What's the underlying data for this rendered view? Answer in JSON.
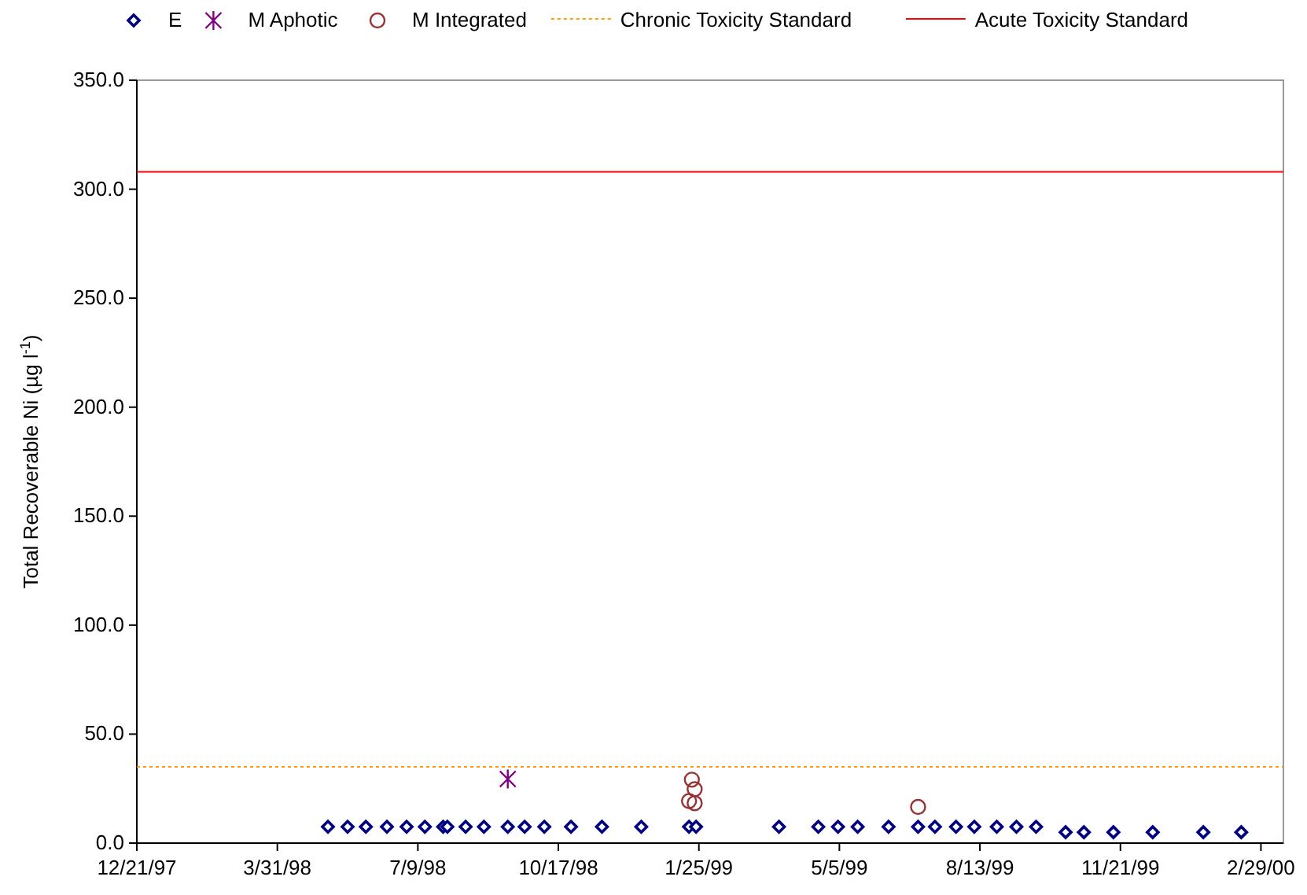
{
  "chart_data": {
    "type": "scatter",
    "ylabel": "Total Recoverable Ni (µg l$^{-1}$)",
    "xlim": [
      "1997-12-21",
      "2000-03-16"
    ],
    "xticks": [
      {
        "value": "1997-12-21",
        "label": "12/21/97"
      },
      {
        "value": "1998-03-31",
        "label": "3/31/98"
      },
      {
        "value": "1998-07-09",
        "label": "7/9/98"
      },
      {
        "value": "1998-10-17",
        "label": "10/17/98"
      },
      {
        "value": "1999-01-25",
        "label": "1/25/99"
      },
      {
        "value": "1999-05-05",
        "label": "5/5/99"
      },
      {
        "value": "1999-08-13",
        "label": "8/13/99"
      },
      {
        "value": "1999-11-21",
        "label": "11/21/99"
      },
      {
        "value": "2000-02-29",
        "label": "2/29/00"
      }
    ],
    "ylim": [
      0,
      350
    ],
    "yticks": [
      {
        "value": 0,
        "label": "0.0"
      },
      {
        "value": 50,
        "label": "50.0"
      },
      {
        "value": 100,
        "label": "100.0"
      },
      {
        "value": 150,
        "label": "150.0"
      },
      {
        "value": 200,
        "label": "200.0"
      },
      {
        "value": 250,
        "label": "250.0"
      },
      {
        "value": 300,
        "label": "300.0"
      },
      {
        "value": 350,
        "label": "350.0"
      }
    ],
    "grid": false,
    "legend": "top",
    "series": [
      {
        "name": "E",
        "color": "#000080",
        "marker": "diamond",
        "x": [
          "1998-05-06",
          "1998-05-20",
          "1998-06-02",
          "1998-06-17",
          "1998-07-01",
          "1998-07-14",
          "1998-07-27",
          "1998-07-30",
          "1998-08-12",
          "1998-08-25",
          "1998-09-11",
          "1998-09-23",
          "1998-10-07",
          "1998-10-26",
          "1998-11-17",
          "1998-12-15",
          "1999-01-18",
          "1999-01-23",
          "1999-03-23",
          "1999-04-20",
          "1999-05-04",
          "1999-05-18",
          "1999-06-09",
          "1999-06-30",
          "1999-07-12",
          "1999-07-27",
          "1999-08-09",
          "1999-08-25",
          "1999-09-08",
          "1999-09-22",
          "1999-10-13",
          "1999-10-26",
          "1999-11-16",
          "1999-12-14",
          "2000-01-19",
          "2000-02-15"
        ],
        "values": [
          7.5,
          7.5,
          7.5,
          7.5,
          7.5,
          7.5,
          7.5,
          7.5,
          7.5,
          7.5,
          7.5,
          7.5,
          7.5,
          7.5,
          7.5,
          7.5,
          7.5,
          7.5,
          7.5,
          7.5,
          7.5,
          7.5,
          7.5,
          7.5,
          7.5,
          7.5,
          7.5,
          7.5,
          7.5,
          7.5,
          5,
          5,
          5,
          5,
          5,
          5
        ]
      },
      {
        "name": "M Aphotic",
        "color": "#800080",
        "marker": "cross",
        "x": [
          "1998-09-11"
        ],
        "values": [
          29.4
        ]
      },
      {
        "name": "M Integrated",
        "color": "#993333",
        "marker": "circle",
        "x": [
          "1999-01-20",
          "1999-01-22",
          "1999-01-18",
          "1999-01-22",
          "1999-06-30"
        ],
        "values": [
          29.1,
          24.7,
          19.3,
          18.3,
          16.6
        ]
      }
    ],
    "ref_lines": [
      {
        "axis": "y",
        "value": 35,
        "label": "Chronic Toxicity Standard",
        "color": "#ff9900",
        "line_style": "dotted"
      },
      {
        "axis": "y",
        "value": 308,
        "label": "Acute Toxicity Standard",
        "color": "#ff0000",
        "line_style": "solid"
      }
    ]
  }
}
